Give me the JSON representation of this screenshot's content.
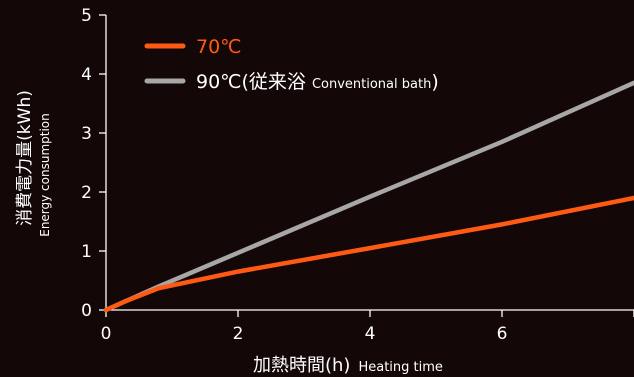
{
  "chart_data": {
    "type": "line",
    "xlabel": "加熱時間(h)",
    "xlabel_en": "Heating time",
    "ylabel": "消費電力量(kWh)",
    "ylabel_en": "Energy consumption",
    "xlim": [
      0,
      8
    ],
    "ylim": [
      0,
      5
    ],
    "xticks": [
      "0",
      "2",
      "4",
      "6",
      "8"
    ],
    "yticks": [
      "0",
      "1",
      "2",
      "3",
      "4",
      "5"
    ],
    "legend": "top-left",
    "grid": false,
    "series": [
      {
        "name": "70℃",
        "color": "#ff5a14",
        "x": [
          0,
          0.3,
          0.8,
          2,
          4,
          6,
          8
        ],
        "y": [
          0,
          0.15,
          0.37,
          0.65,
          1.05,
          1.45,
          1.9
        ]
      },
      {
        "name": "90℃(従来浴",
        "name_en": "Conventional bath",
        "name_suffix": ")",
        "color": "#a7a7a7",
        "x": [
          0,
          0.3,
          0.8,
          2,
          4,
          6,
          8
        ],
        "y": [
          0,
          0.15,
          0.4,
          0.97,
          1.92,
          2.85,
          3.85
        ]
      }
    ]
  }
}
